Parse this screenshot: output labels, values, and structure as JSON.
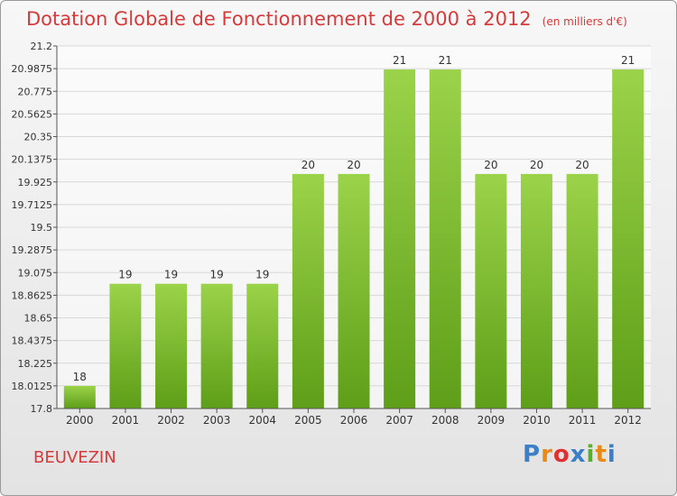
{
  "header": {
    "title": "Dotation Globale de Fonctionnement de 2000 à 2012",
    "subtitle": "(en milliers d'€)"
  },
  "commune": "BEUVEZIN",
  "logo": {
    "text": "Proxiti",
    "colors": [
      "#3a7fc8",
      "#e88a1a",
      "#e03030",
      "#3a7fc8",
      "#59b030",
      "#e88a1a",
      "#3a7fc8"
    ]
  },
  "colors": {
    "bar_light": "#9bd34a",
    "bar_dark": "#5e9e18",
    "grid": "#d8d8d8",
    "axis": "#555555",
    "title": "#d63a3a"
  },
  "chart_data": {
    "type": "bar",
    "categories": [
      "2000",
      "2001",
      "2002",
      "2003",
      "2004",
      "2005",
      "2006",
      "2007",
      "2008",
      "2009",
      "2010",
      "2011",
      "2012"
    ],
    "values": [
      18.0125,
      18.97,
      18.97,
      18.97,
      18.97,
      20.0,
      20.0,
      20.98,
      20.98,
      20.0,
      20.0,
      20.0,
      20.98
    ],
    "data_labels": [
      "18",
      "19",
      "19",
      "19",
      "19",
      "20",
      "20",
      "21",
      "21",
      "20",
      "20",
      "20",
      "21"
    ],
    "y_ticks": [
      "17.8",
      "18.0125",
      "18.225",
      "18.4375",
      "18.65",
      "18.8625",
      "19.075",
      "19.2875",
      "19.5",
      "19.7125",
      "19.925",
      "20.1375",
      "20.35",
      "20.5625",
      "20.775",
      "20.9875",
      "21.2"
    ],
    "ylim": [
      17.8,
      21.2
    ],
    "grid": true,
    "title": "Dotation Globale de Fonctionnement de 2000 à 2012",
    "xlabel": "",
    "ylabel": ""
  }
}
